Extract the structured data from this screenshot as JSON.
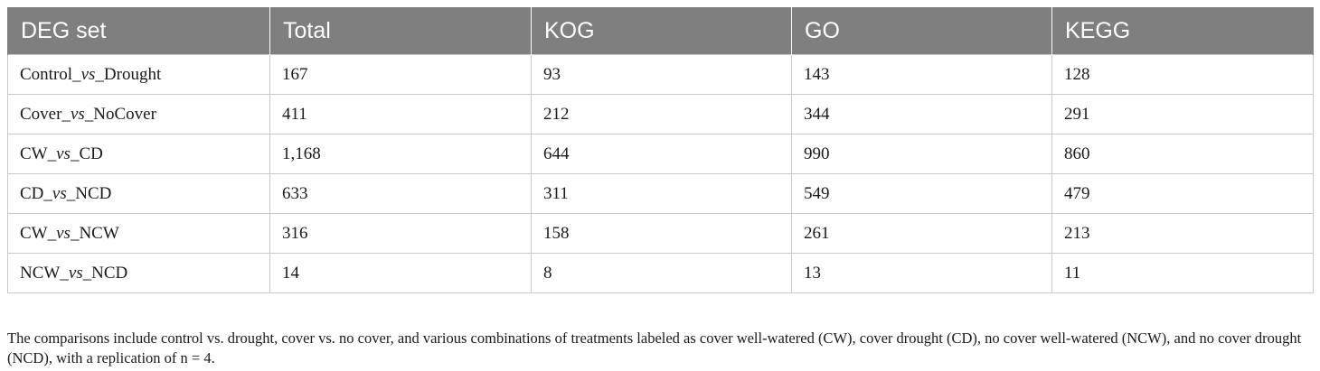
{
  "table": {
    "headers": [
      "DEG set",
      "Total",
      "KOG",
      "GO",
      "KEGG"
    ],
    "rows": [
      {
        "set": {
          "a": "Control_",
          "vs": "vs",
          "b": "_Drought"
        },
        "total": "167",
        "kog": "93",
        "go": "143",
        "kegg": "128"
      },
      {
        "set": {
          "a": "Cover_",
          "vs": "vs",
          "b": "_NoCover"
        },
        "total": "411",
        "kog": "212",
        "go": "344",
        "kegg": "291"
      },
      {
        "set": {
          "a": "CW_",
          "vs": "vs",
          "b": "_CD"
        },
        "total": "1,168",
        "kog": "644",
        "go": "990",
        "kegg": "860"
      },
      {
        "set": {
          "a": "CD_",
          "vs": "vs",
          "b": "_NCD"
        },
        "total": "633",
        "kog": "311",
        "go": "549",
        "kegg": "479"
      },
      {
        "set": {
          "a": "CW_",
          "vs": "vs",
          "b": "_NCW"
        },
        "total": "316",
        "kog": "158",
        "go": "261",
        "kegg": "213"
      },
      {
        "set": {
          "a": "NCW_",
          "vs": "vs",
          "b": "_NCD"
        },
        "total": "14",
        "kog": "8",
        "go": "13",
        "kegg": "11"
      }
    ]
  },
  "caption": "The comparisons include control vs. drought, cover vs. no cover, and various combinations of treatments labeled as cover well-watered (CW), cover drought (CD), no cover well-watered (NCW), and no cover drought (NCD), with a replication of n = 4.",
  "colors": {
    "header_bg": "#7f7f7f",
    "header_text": "#ffffff",
    "grid": "#c9c9c9",
    "text": "#1a1a1a"
  }
}
